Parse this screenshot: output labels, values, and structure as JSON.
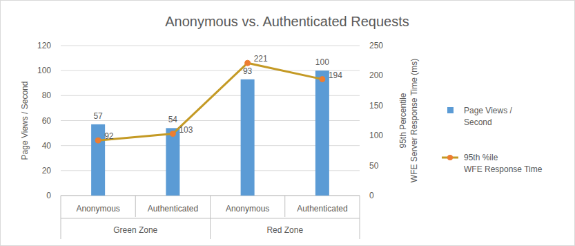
{
  "chart_data": {
    "type": "bar",
    "title": "Anonymous vs. Authenticated Requests",
    "categories": [
      "Anonymous",
      "Authenticated",
      "Anonymous",
      "Authenticated"
    ],
    "category_groups": [
      "Green Zone",
      "Green Zone",
      "Red Zone",
      "Red Zone"
    ],
    "ylabel": "Page Views / Second",
    "y2label": "95th Percentile\nWFE Server Response Time (ms)",
    "ylim": [
      0,
      120
    ],
    "yticks": [
      0,
      20,
      40,
      60,
      80,
      100,
      120
    ],
    "y2lim": [
      0,
      250
    ],
    "y2ticks": [
      0,
      50,
      100,
      150,
      200,
      250
    ],
    "grid": true,
    "legend": "right",
    "data_labels": true,
    "series": [
      {
        "name": "Page Views /\nSecond",
        "type": "bar",
        "color": "#5b9bd5",
        "values": [
          57,
          54,
          93,
          100
        ]
      },
      {
        "name": "95th %ile\nWFE Response Time",
        "type": "line",
        "axis": "y2",
        "color": "#c49a25",
        "marker": "circle",
        "values": [
          92,
          103,
          221,
          194
        ]
      }
    ]
  }
}
